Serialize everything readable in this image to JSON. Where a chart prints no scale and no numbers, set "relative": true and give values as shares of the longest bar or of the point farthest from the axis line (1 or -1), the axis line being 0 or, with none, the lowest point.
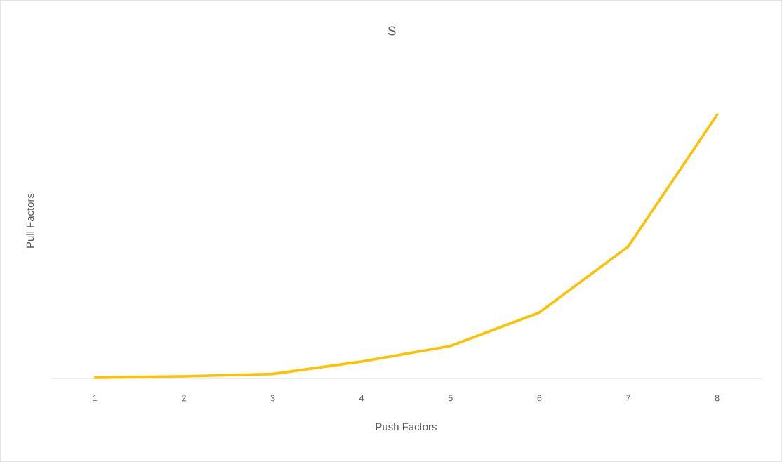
{
  "chart_data": {
    "type": "line",
    "title": "S",
    "xlabel": "Push Factors",
    "ylabel": "Pull Factors",
    "categories": [
      "1",
      "2",
      "3",
      "4",
      "5",
      "6",
      "7",
      "8"
    ],
    "relative": true,
    "series": [
      {
        "color": "#ffc000",
        "values": [
          0.003,
          0.008,
          0.017,
          0.064,
          0.123,
          0.25,
          0.5,
          1
        ]
      }
    ],
    "grid": false,
    "marker": "none",
    "line_style": "solid"
  }
}
